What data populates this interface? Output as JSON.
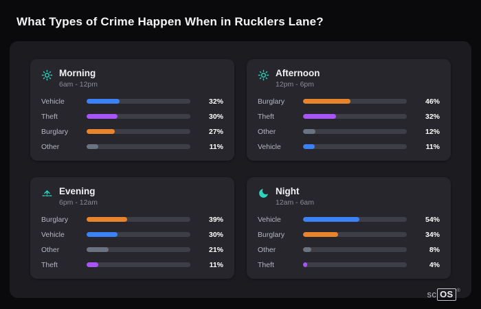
{
  "page": {
    "title": "What Types of Crime Happen When in Rucklers Lane?"
  },
  "colors": {
    "vehicle": "#3b82f6",
    "theft": "#a855f7",
    "burglary": "#e8852c",
    "other": "#6b7280",
    "icon_accent": "#2dd4bf"
  },
  "chart_data": [
    {
      "type": "bar",
      "orientation": "horizontal",
      "title": "Morning",
      "subtitle": "6am - 12pm",
      "icon": "sun-icon",
      "xlim": [
        0,
        100
      ],
      "categories": [
        "Vehicle",
        "Theft",
        "Burglary",
        "Other"
      ],
      "values": [
        32,
        30,
        27,
        11
      ],
      "value_labels": [
        "32%",
        "30%",
        "27%",
        "11%"
      ]
    },
    {
      "type": "bar",
      "orientation": "horizontal",
      "title": "Afternoon",
      "subtitle": "12pm - 6pm",
      "icon": "sun-icon",
      "xlim": [
        0,
        100
      ],
      "categories": [
        "Burglary",
        "Theft",
        "Other",
        "Vehicle"
      ],
      "values": [
        46,
        32,
        12,
        11
      ],
      "value_labels": [
        "46%",
        "32%",
        "12%",
        "11%"
      ]
    },
    {
      "type": "bar",
      "orientation": "horizontal",
      "title": "Evening",
      "subtitle": "6pm - 12am",
      "icon": "sunset-icon",
      "xlim": [
        0,
        100
      ],
      "categories": [
        "Burglary",
        "Vehicle",
        "Other",
        "Theft"
      ],
      "values": [
        39,
        30,
        21,
        11
      ],
      "value_labels": [
        "39%",
        "30%",
        "21%",
        "11%"
      ]
    },
    {
      "type": "bar",
      "orientation": "horizontal",
      "title": "Night",
      "subtitle": "12am - 6am",
      "icon": "moon-icon",
      "xlim": [
        0,
        100
      ],
      "categories": [
        "Vehicle",
        "Burglary",
        "Other",
        "Theft"
      ],
      "values": [
        54,
        34,
        8,
        4
      ],
      "value_labels": [
        "54%",
        "34%",
        "8%",
        "4%"
      ]
    }
  ],
  "brand": {
    "prefix": "sc",
    "boxed": "OS",
    "registered": "®"
  }
}
